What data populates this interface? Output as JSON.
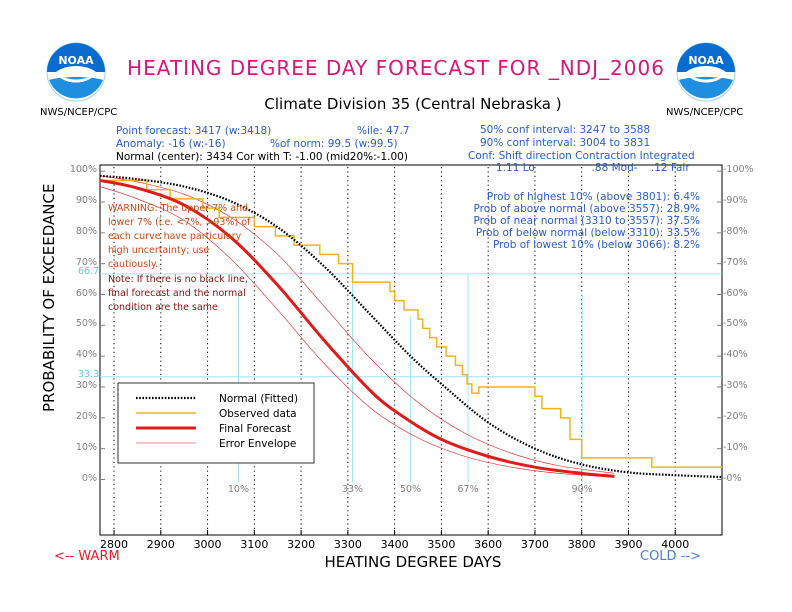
{
  "header": {
    "title": "HEATING DEGREE DAY FORECAST FOR _NDJ_2006",
    "subtitle": "Climate Division 35 (Central Nebraska )",
    "agency_left": "NWS/NCEP/CPC",
    "agency_right": "NWS/NCEP/CPC",
    "logo_text": "NOAA"
  },
  "info": {
    "point_forecast": "Point forecast: 3417 (w:3418)",
    "pctile": "%ile: 47.7",
    "anomaly": "Anomaly: -16 (w:-16)",
    "pct_norm": "%of norm: 99.5 (w:99.5)",
    "normal": "Normal (center): 3434 Cor with T: -1.00 (mid20%:-1.00)",
    "conf50": "50% conf interval: 3247 to 3588",
    "conf90": "90% conf interval: 3004 to 3831",
    "shift_header": "Conf: Shift direction   Contraction   Integrated",
    "shift_values": "1.11 Lo                 .88 Mod-    .12 Fair",
    "prob_lines": [
      "Prob of highest 10% (above 3801): 6.4%",
      "Prob of above normal (above 3557): 28.9%",
      "Prob of near normal (3310 to 3557): 37.5%",
      "Prob of below normal (below 3310): 33.5%",
      "Prob of lowest 10% (below 3066): 8.2%"
    ],
    "warning": "WARNING: The upper 7% and lower 7% (i.e. <7%, >93%) of each curve have particulary high uncertainty; use cautiously.",
    "note": "Note: If there is no black line, final forecast and the normal condition are the same"
  },
  "axis_labels": {
    "ylabel": "PROBABILITY OF EXCEEDANCE",
    "xlabel": "HEATING DEGREE DAYS",
    "warm": "<-- WARM",
    "cold": "COLD -->"
  },
  "chart_data": {
    "type": "line",
    "title": "HEATING DEGREE DAY FORECAST FOR _NDJ_2006",
    "xlabel": "HEATING DEGREE DAYS",
    "ylabel": "PROBABILITY OF EXCEEDANCE",
    "xlim": [
      2770,
      4100
    ],
    "ylim": [
      -18,
      102
    ],
    "x_ticks": [
      2800,
      2900,
      3000,
      3100,
      3200,
      3300,
      3400,
      3500,
      3600,
      3700,
      3800,
      3900,
      4000
    ],
    "y_ticks": [
      0,
      10,
      20,
      30,
      40,
      50,
      60,
      70,
      80,
      90,
      100
    ],
    "y_tick_labels": [
      "0%",
      "10%",
      "20%",
      "30%",
      "40%",
      "50%",
      "60%",
      "70%",
      "80%",
      "90%",
      "100%"
    ],
    "grid": "dotted vertical at x ticks",
    "climatology_percentiles": [
      {
        "label": "10%",
        "x": 3066
      },
      {
        "label": "33%",
        "x": 3310
      },
      {
        "label": "50%",
        "x": 3434
      },
      {
        "label": "67%",
        "x": 3557
      },
      {
        "label": "90%",
        "x": 3801
      }
    ],
    "ref_lines_y": [
      {
        "label": "66.7",
        "y": 66.7
      },
      {
        "label": "33.3",
        "y": 33.3
      }
    ],
    "series": [
      {
        "name": "Normal (Fitted)",
        "style": "dotted-black",
        "color": "#000000",
        "x": [
          2770,
          2850,
          2950,
          3050,
          3150,
          3250,
          3350,
          3434,
          3500,
          3600,
          3700,
          3800,
          3900,
          4000,
          4100
        ],
        "y": [
          98.5,
          97.4,
          95,
          90.2,
          81.8,
          69,
          53.2,
          40,
          31,
          18.5,
          10,
          4.9,
          2.3,
          1.4,
          0.8
        ]
      },
      {
        "name": "Observed data",
        "style": "step",
        "color": "#f2b21e",
        "x": [
          2770,
          2870,
          2870,
          2920,
          2920,
          2990,
          2990,
          3025,
          3025,
          3100,
          3100,
          3145,
          3145,
          3185,
          3185,
          3240,
          3240,
          3280,
          3280,
          3310,
          3310,
          3390,
          3390,
          3400,
          3400,
          3420,
          3420,
          3450,
          3450,
          3460,
          3460,
          3475,
          3475,
          3490,
          3490,
          3510,
          3510,
          3530,
          3530,
          3545,
          3545,
          3555,
          3555,
          3565,
          3565,
          3580,
          3580,
          3700,
          3700,
          3715,
          3715,
          3755,
          3755,
          3775,
          3775,
          3800,
          3800,
          3950,
          3950,
          4100
        ],
        "y": [
          97,
          97,
          94,
          94,
          91,
          91,
          88,
          88,
          85,
          85,
          82,
          82,
          79,
          79,
          76,
          76,
          73,
          73,
          70,
          70,
          64,
          64,
          61,
          61,
          58,
          58,
          55,
          55,
          52,
          52,
          49,
          49,
          46,
          46,
          43,
          43,
          40,
          40,
          37,
          37,
          34,
          34,
          31,
          31,
          28,
          28,
          30,
          30,
          27,
          27,
          23,
          23,
          20,
          20,
          13,
          13,
          7,
          7,
          4,
          4
        ]
      },
      {
        "name": "Final Forecast",
        "style": "solid-thick",
        "color": "#e11a1a",
        "x": [
          2770,
          2850,
          2950,
          3050,
          3150,
          3250,
          3350,
          3417,
          3500,
          3600,
          3700,
          3800,
          3870
        ],
        "y": [
          97,
          94.5,
          89,
          78.5,
          63,
          45,
          28.5,
          20.5,
          13,
          7.5,
          4,
          2,
          1
        ]
      },
      {
        "name": "Error Envelope",
        "style": "thin",
        "color": "#e11a1a",
        "x": [
          2770,
          2850,
          2950,
          3050,
          3150,
          3250,
          3350,
          3450,
          3550,
          3650,
          3750,
          3870
        ],
        "y": [
          98.5,
          96.5,
          92.5,
          85,
          73,
          56,
          39,
          25,
          15,
          8.5,
          4.5,
          2
        ]
      },
      {
        "name": "",
        "style": "thin",
        "color": "#e11a1a",
        "x": [
          2770,
          2850,
          2950,
          3050,
          3150,
          3250,
          3350,
          3450,
          3550,
          3650,
          3750,
          3870
        ],
        "y": [
          95,
          91,
          84,
          71.5,
          55,
          37.5,
          23,
          13.5,
          7.5,
          4,
          2,
          0.8
        ]
      }
    ],
    "legend": {
      "placement": "lower-left",
      "entries": [
        {
          "label": "Normal (Fitted)",
          "style": "dotted-black",
          "color": "#000000"
        },
        {
          "label": "Observed data",
          "style": "step",
          "color": "#f2b21e"
        },
        {
          "label": "Final Forecast",
          "style": "solid-thick",
          "color": "#e11a1a"
        },
        {
          "label": "Error Envelope",
          "style": "thin",
          "color": "#e11a1a"
        }
      ]
    }
  }
}
